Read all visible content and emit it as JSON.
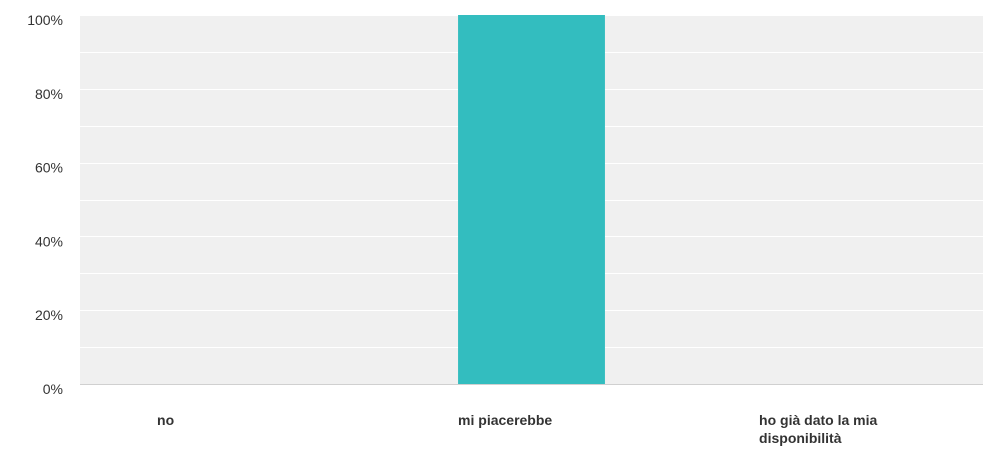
{
  "chart_data": {
    "type": "bar",
    "categories": [
      "no",
      "mi piacerebbe",
      "ho già dato la mia disponibilità"
    ],
    "category_label_lines": [
      [
        "no"
      ],
      [
        "mi piacerebbe"
      ],
      [
        "ho già dato la mia",
        "disponibilità"
      ]
    ],
    "values": [
      0,
      100,
      0
    ],
    "y_ticks": [
      0,
      20,
      40,
      60,
      80,
      100
    ],
    "y_tick_labels": [
      "0%",
      "20%",
      "40%",
      "60%",
      "80%",
      "100%"
    ],
    "ylim": [
      0,
      100
    ],
    "title": "",
    "xlabel": "",
    "ylabel": "",
    "grid": true,
    "legend": "none",
    "colors": {
      "bar": "#33bdbf",
      "plot_background": "#f0f0f0",
      "gridline": "#ffffff",
      "axis": "#d0d0d0",
      "text": "#333333"
    }
  }
}
